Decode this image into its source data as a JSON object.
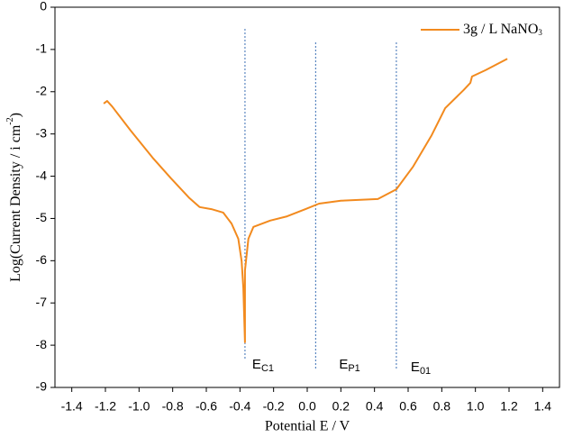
{
  "chart_data": {
    "type": "line",
    "xlabel": "Potential E / V",
    "ylabel": "Log(Current Density / i cm",
    "ylabel_sup": "-2",
    "ylabel_end": ")",
    "xlim": [
      -1.5,
      1.5
    ],
    "ylim": [
      -9,
      0
    ],
    "xticks": [
      -1.4,
      -1.2,
      {
        "value": -1.0,
        "label": "-1.0"
      },
      -0.8,
      -0.6,
      -0.4,
      -0.2,
      {
        "value": 0,
        "label": "0.0"
      },
      0.2,
      0.4,
      0.6,
      0.8,
      {
        "value": 1.0,
        "label": "1.0"
      },
      1.2,
      1.4
    ],
    "yticks": [
      0,
      -1,
      -2,
      -3,
      -4,
      -5,
      -6,
      -7,
      -8,
      -9
    ],
    "legend": "upper right",
    "series": [
      {
        "name": "3g / L  NaNO",
        "name_subscript": "3",
        "color": "#f28a1e",
        "x": [
          -1.21,
          -1.19,
          -1.16,
          -1.05,
          -0.92,
          -0.81,
          -0.7,
          -0.64,
          -0.57,
          -0.5,
          -0.45,
          -0.41,
          -0.39,
          -0.38,
          -0.37,
          -0.37,
          -0.35,
          -0.32,
          -0.22,
          -0.12,
          -0.01,
          0.07,
          0.2,
          0.42,
          0.53,
          0.63,
          0.74,
          0.82,
          0.93,
          0.97,
          0.98,
          1.06,
          1.19
        ],
        "values": [
          -2.28,
          -2.22,
          -2.35,
          -2.92,
          -3.56,
          -4.05,
          -4.52,
          -4.73,
          -4.78,
          -4.86,
          -5.12,
          -5.48,
          -6.01,
          -6.65,
          -7.93,
          -6.23,
          -5.48,
          -5.2,
          -5.05,
          -4.95,
          -4.78,
          -4.65,
          -4.58,
          -4.54,
          -4.31,
          -3.77,
          -3.03,
          -2.39,
          -1.96,
          -1.79,
          -1.64,
          -1.49,
          -1.22
        ]
      }
    ],
    "vlines": [
      {
        "x": -0.37,
        "label": "E",
        "sub": "C1",
        "color": "#3a6fb5"
      },
      {
        "x": 0.05,
        "label": "E",
        "sub": "P1",
        "color": "#3a6fb5"
      },
      {
        "x": 0.53,
        "label": "E",
        "sub": "01",
        "color": "#3a6fb5"
      }
    ]
  }
}
